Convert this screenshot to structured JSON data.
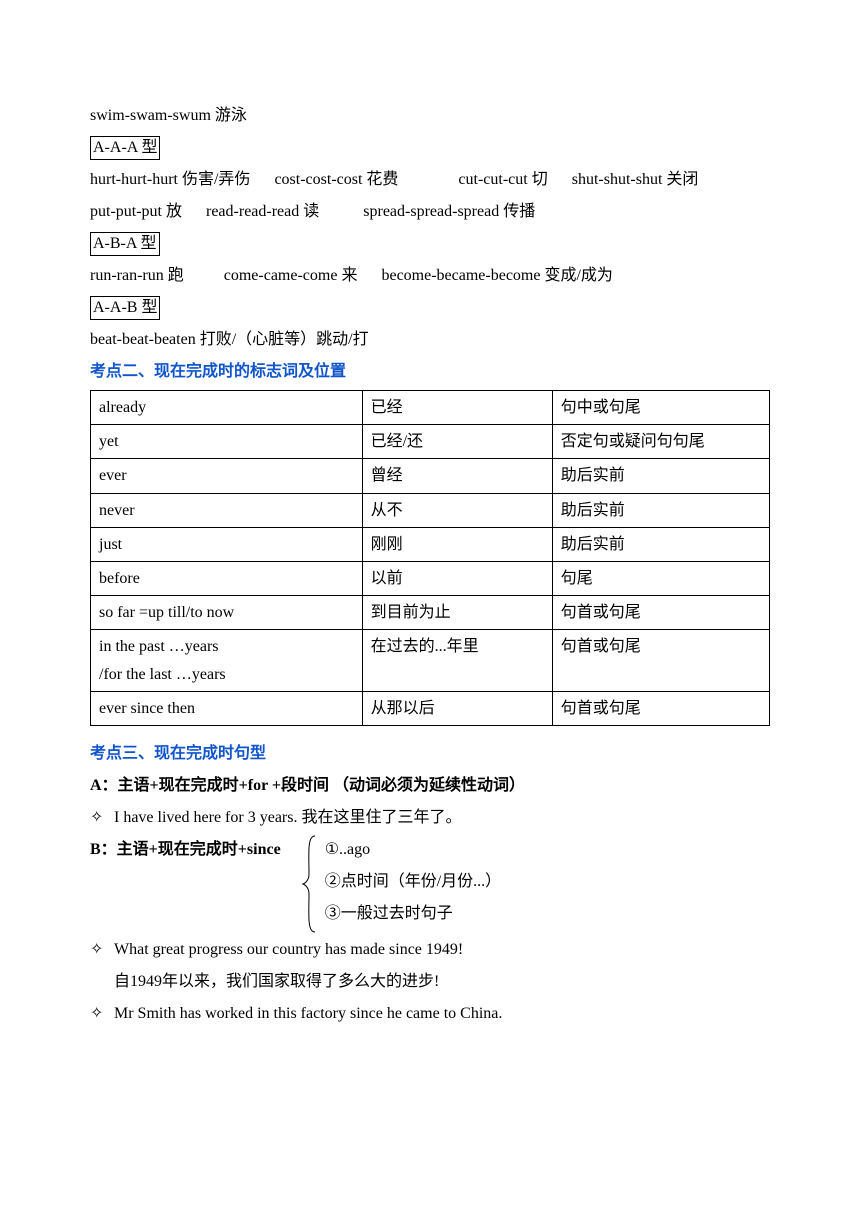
{
  "line_swim": "swim-swam-swum 游泳",
  "type_aaa": "A-A-A 型",
  "aaa_line1_a": "hurt-hurt-hurt 伤害/弄伤",
  "aaa_line1_b": "cost-cost-cost 花费",
  "aaa_line1_c": "cut-cut-cut 切",
  "aaa_line1_d": "shut-shut-shut 关闭",
  "aaa_line2_a": "put-put-put 放",
  "aaa_line2_b": "read-read-read 读",
  "aaa_line2_c": "spread-spread-spread 传播",
  "type_aba": "A-B-A 型",
  "aba_line1_a": "run-ran-run 跑",
  "aba_line1_b": "come-came-come 来",
  "aba_line1_c": "become-became-become 变成/成为",
  "type_aab": "A-A-B 型",
  "aab_line1": "beat-beat-beaten 打败/（心脏等）跳动/打",
  "heading2": "考点二、现在完成时的标志词及位置",
  "table": {
    "rows": [
      [
        "already",
        "已经",
        "句中或句尾"
      ],
      [
        "yet",
        "已经/还",
        "否定句或疑问句句尾"
      ],
      [
        "ever",
        "曾经",
        "助后实前"
      ],
      [
        "never",
        "从不",
        "助后实前"
      ],
      [
        "just",
        "刚刚",
        "助后实前"
      ],
      [
        "before",
        "以前",
        "句尾"
      ],
      [
        "so far =up till/to now",
        "到目前为止",
        "句首或句尾"
      ],
      [
        "in the past …years\n/for the last …years",
        "在过去的...年里",
        "句首或句尾"
      ],
      [
        "ever since then",
        "从那以后",
        "句首或句尾"
      ]
    ]
  },
  "heading3": "考点三、现在完成时句型",
  "patternA": "A：主语+现在完成时+for +段时间 （动词必须为延续性动词）",
  "exA": "I have lived here for 3 years.  我在这里住了三年了。",
  "patternB": "B：主语+现在完成时+since",
  "brace1": "①..ago",
  "brace2": "②点时间（年份/月份...）",
  "brace3": "③一般过去时句子",
  "exB1_en": "What great progress our country has made since 1949!",
  "exB1_zh": "自1949年以来，我们国家取得了多么大的进步!",
  "exB2": "Mr Smith has worked in this factory since he came to China."
}
